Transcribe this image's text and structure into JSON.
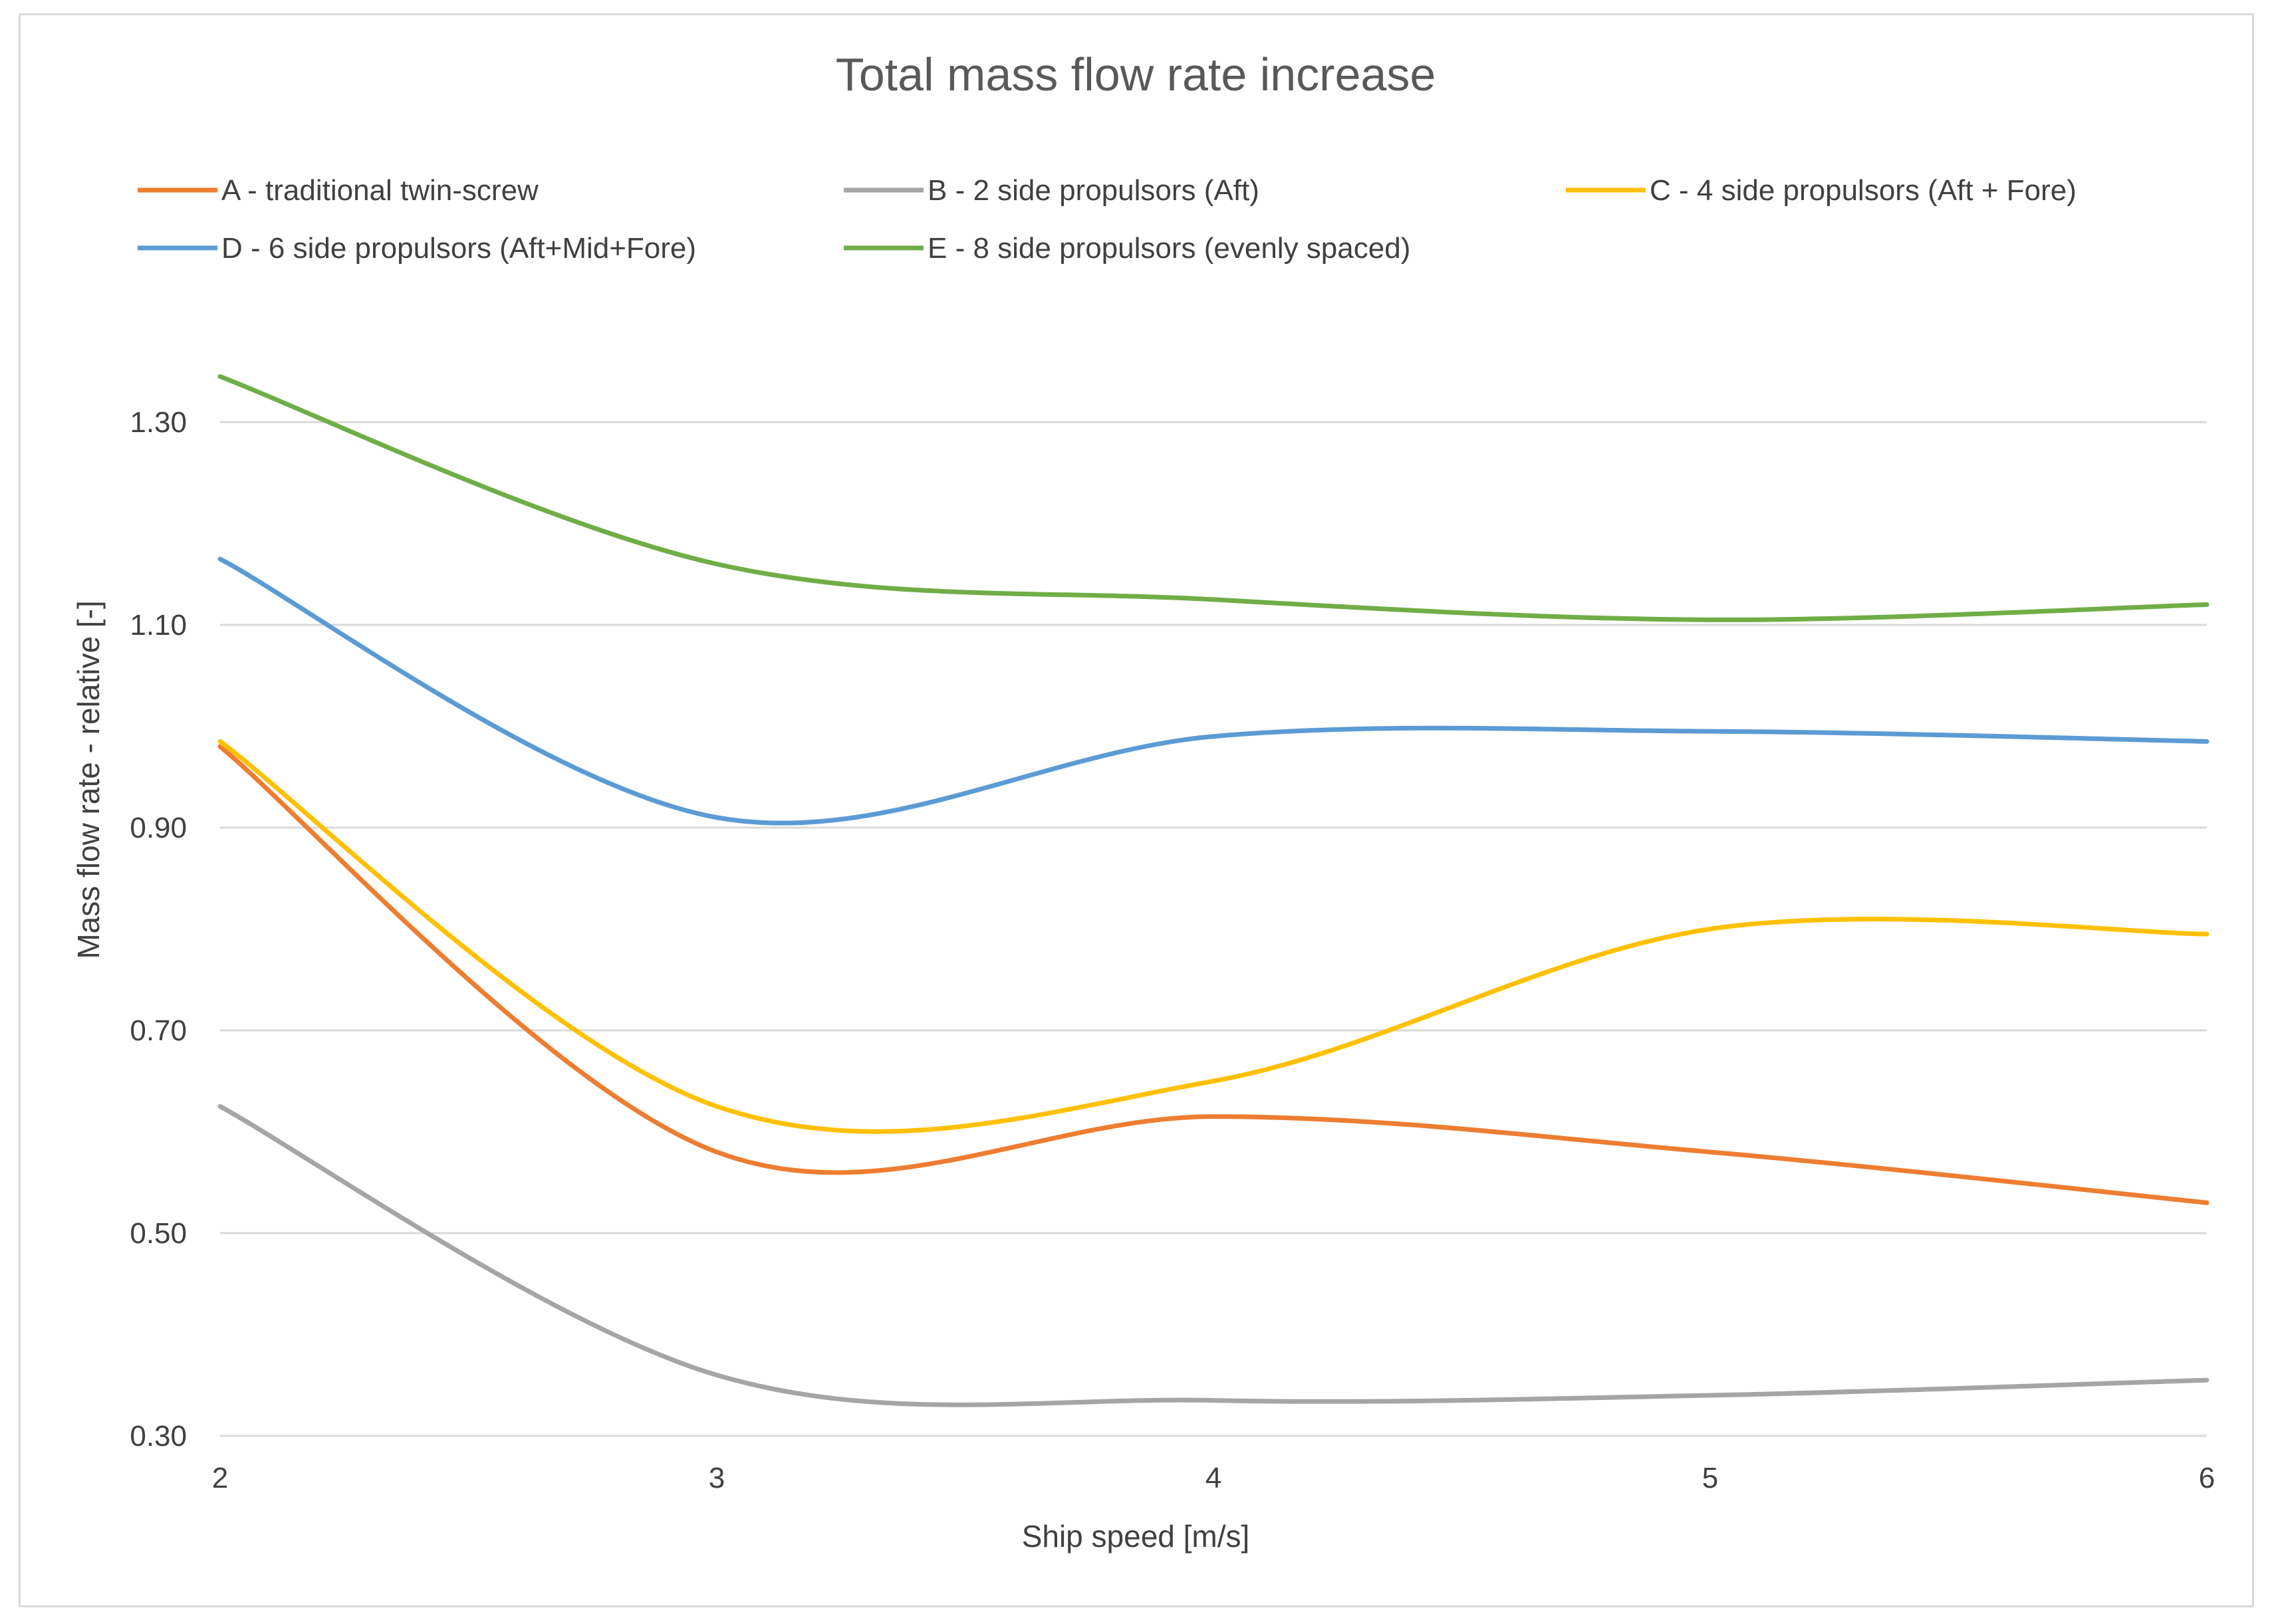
{
  "chart_data": {
    "type": "line",
    "title": "Total mass flow rate increase",
    "xlabel": "Ship speed [m/s]",
    "ylabel": "Mass flow rate - relative [-]",
    "xlim": [
      2,
      6
    ],
    "ylim": [
      0.3,
      1.3
    ],
    "xticks": [
      "2",
      "3",
      "4",
      "5",
      "6"
    ],
    "yticks": [
      "0.30",
      "0.50",
      "0.70",
      "0.90",
      "1.10",
      "1.30"
    ],
    "grid": true,
    "legend_position": "top",
    "series": [
      {
        "name": "A - traditional twin-screw",
        "color": "#ED7D31",
        "x": [
          2,
          3,
          4,
          5,
          6
        ],
        "y": [
          0.98,
          0.58,
          0.615,
          0.58,
          0.53
        ]
      },
      {
        "name": "B - 2 side propulsors (Aft)",
        "color": "#A5A5A5",
        "x": [
          2,
          3,
          4,
          5,
          6
        ],
        "y": [
          0.625,
          0.36,
          0.335,
          0.34,
          0.355
        ]
      },
      {
        "name": "C - 4 side propulsors (Aft + Fore)",
        "color": "#FFC000",
        "x": [
          2,
          3,
          4,
          5,
          6
        ],
        "y": [
          0.985,
          0.625,
          0.65,
          0.8,
          0.795
        ]
      },
      {
        "name": "D - 6 side propulsors (Aft+Mid+Fore)",
        "color": "#5B9BD5",
        "x": [
          2,
          3,
          4,
          5,
          6
        ],
        "y": [
          1.165,
          0.91,
          0.99,
          0.995,
          0.985
        ]
      },
      {
        "name": "E - 8 side propulsors (evenly spaced)",
        "color": "#70AD47",
        "x": [
          2,
          3,
          4,
          5,
          6
        ],
        "y": [
          1.345,
          1.16,
          1.125,
          1.105,
          1.12
        ]
      }
    ]
  }
}
